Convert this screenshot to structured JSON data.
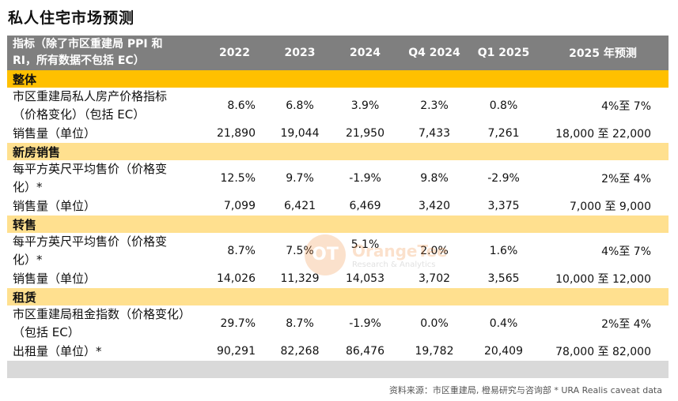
{
  "title": "私人住宅市场预测",
  "header": {
    "metric_line1": "指标（除了市区重建局 PPI 和",
    "metric_line2": "RI，所有数据不包括 EC）",
    "cols": [
      "2022",
      "2023",
      "2024",
      "Q4 2024",
      "Q1 2025",
      "2025 年预测"
    ]
  },
  "sections": [
    {
      "name": "整体",
      "rows": [
        {
          "label": [
            "市区重建局私人房产价格指标",
            "（价格变化）（包括 EC）"
          ],
          "values": [
            "8.6%",
            "6.8%",
            "3.9%",
            "2.3%",
            "0.8%"
          ],
          "forecast": "4%至 7%"
        },
        {
          "label": [
            "销售量（单位）"
          ],
          "values": [
            "21,890",
            "19,044",
            "21,950",
            "7,433",
            "7,261"
          ],
          "forecast": "18,000 至 22,000"
        }
      ]
    },
    {
      "name": "新房销售",
      "rows": [
        {
          "label": [
            "每平方英尺平均售价（价格变",
            "化）*"
          ],
          "values": [
            "12.5%",
            "9.7%",
            "-1.9%",
            "9.8%",
            "-2.9%"
          ],
          "forecast": "2%至 4%"
        },
        {
          "label": [
            "销售量（单位）"
          ],
          "values": [
            "7,099",
            "6,421",
            "6,469",
            "3,420",
            "3,375"
          ],
          "forecast": "7,000 至 9,000"
        }
      ]
    },
    {
      "name": "转售",
      "rows": [
        {
          "label": [
            "每平方英尺平均售价（价格变",
            "化）*"
          ],
          "values": [
            "8.7%",
            "7.5%",
            "5.1%",
            "2.0%",
            "1.6%"
          ],
          "forecast": "4%至 7%"
        },
        {
          "label": [
            "销售量（单位）"
          ],
          "values": [
            "14,026",
            "11,329",
            "14,053",
            "3,702",
            "3,565"
          ],
          "forecast": "10,000 至 12,000"
        }
      ]
    },
    {
      "name": "租赁",
      "rows": [
        {
          "label": [
            "市区重建局租金指数（价格变化）",
            "（包括 EC）"
          ],
          "values": [
            "29.7%",
            "8.7%",
            "-1.9%",
            "0.0%",
            "0.4%"
          ],
          "forecast": "2%至 4%"
        },
        {
          "label": [
            "出租量（单位）*"
          ],
          "values": [
            "90,291",
            "82,268",
            "86,476",
            "19,782",
            "20,409"
          ],
          "forecast": "78,000 至 82,000"
        }
      ]
    }
  ],
  "source": "资料来源：市区重建局, 橙易研究与咨询部 * URA Realis caveat data",
  "watermark": {
    "logo": "OT",
    "brand": "OrangeTee",
    "sub": "Research & Analytics"
  },
  "colors": {
    "header": "#7f7f7f",
    "section": "#ffc000",
    "section_light": "#ffe08f",
    "footer_band": "#d9d9d9"
  }
}
